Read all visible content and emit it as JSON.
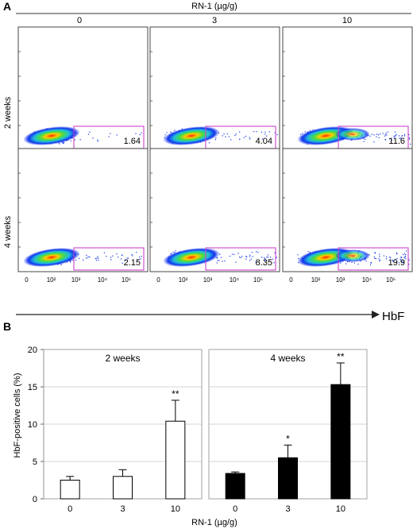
{
  "figure": {
    "panel_a": {
      "label": "A",
      "treatment_label": "RN-1 (µg/g)",
      "dose_headers": [
        "0",
        "3",
        "10"
      ],
      "row_labels": [
        "2 weeks",
        "4 weeks"
      ],
      "x_tick_labels": [
        "0",
        "10²",
        "10³",
        "10⁴",
        "10⁵"
      ],
      "axis_label": "HbF",
      "gate_values": [
        [
          "1.64",
          "4.04",
          "11.6"
        ],
        [
          "2.15",
          "8.35",
          "19.9"
        ]
      ],
      "gate_color": "#cc44cc"
    },
    "panel_b": {
      "label": "B",
      "colors": {
        "open_bar": "#ffffff",
        "filled_bar": "#000000",
        "frame": "#999999"
      }
    }
  },
  "chart_data": {
    "type": "bar",
    "title": "",
    "ylabel": "HbF-positive cells (%)",
    "xlabel": "RN-1 (µg/g)",
    "categories": [
      "0",
      "3",
      "10"
    ],
    "ylim": [
      0,
      20
    ],
    "y_ticks": [
      "0",
      "5",
      "10",
      "15",
      "20"
    ],
    "grid": true,
    "panels": [
      {
        "title": "2 weeks",
        "fill": "open",
        "values": [
          2.5,
          3.0,
          10.4
        ],
        "errors": [
          0.5,
          0.9,
          2.8
        ],
        "annotations": [
          "",
          "",
          "**"
        ]
      },
      {
        "title": "4 weeks",
        "fill": "solid",
        "values": [
          3.4,
          5.5,
          15.3
        ],
        "errors": [
          0.2,
          1.7,
          2.9
        ],
        "annotations": [
          "",
          "*",
          "**"
        ]
      }
    ]
  }
}
